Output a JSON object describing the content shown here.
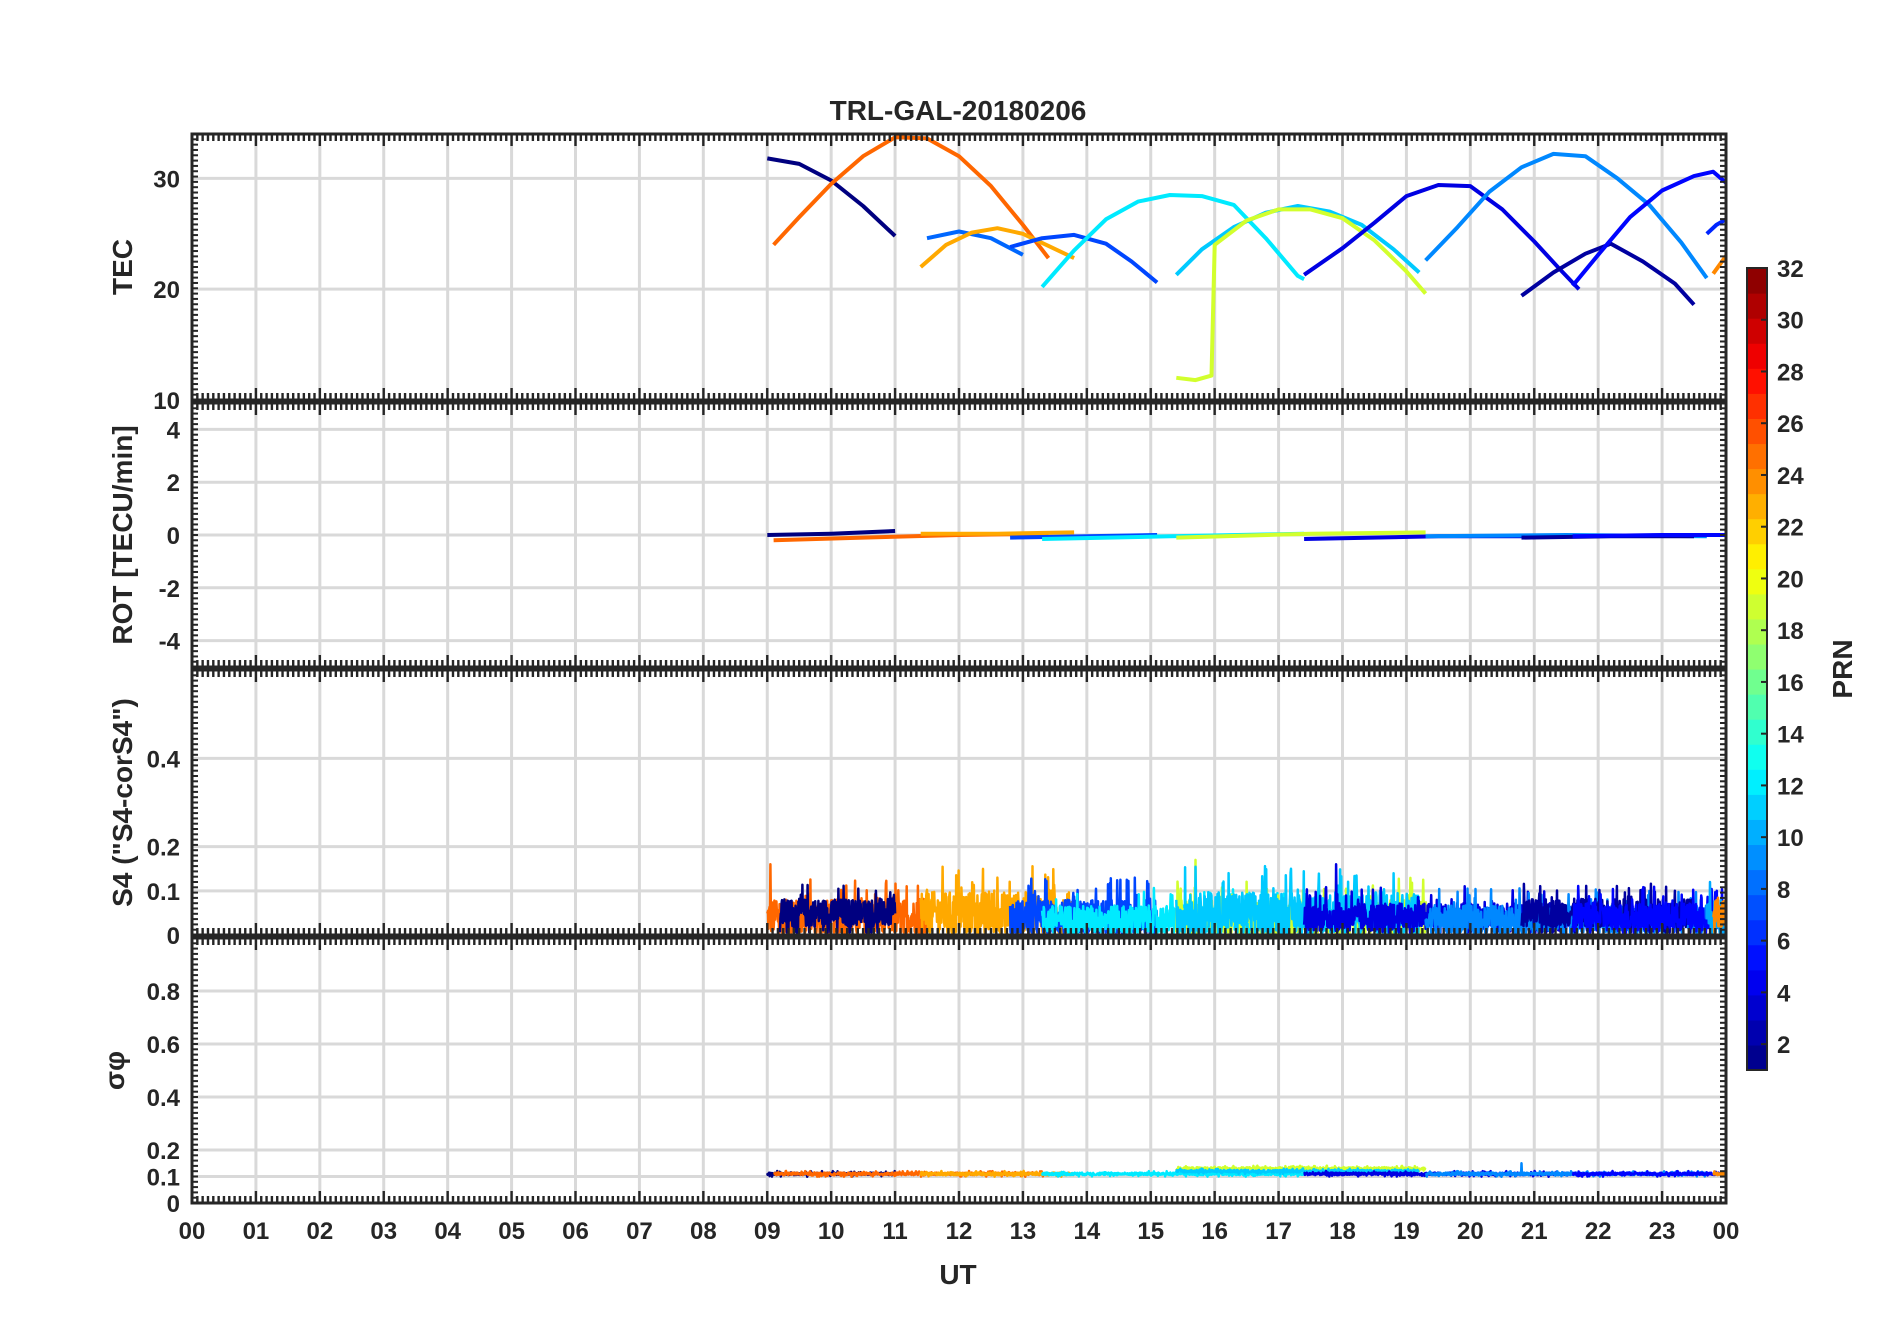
{
  "chart_data": {
    "title": "TRL-GAL-20180206",
    "type": "line",
    "xlabel": "UT",
    "x_ticks": [
      "00",
      "01",
      "02",
      "03",
      "04",
      "05",
      "06",
      "07",
      "08",
      "09",
      "10",
      "11",
      "12",
      "13",
      "14",
      "15",
      "16",
      "17",
      "18",
      "19",
      "20",
      "21",
      "22",
      "23",
      "00"
    ],
    "xlim": [
      0,
      24
    ],
    "colorbar": {
      "label": "PRN",
      "range": [
        1,
        32
      ],
      "ticks": [
        "2",
        "4",
        "6",
        "8",
        "10",
        "12",
        "14",
        "16",
        "18",
        "20",
        "22",
        "24",
        "26",
        "28",
        "30",
        "32"
      ],
      "colormap": "jet"
    },
    "panels": [
      {
        "id": "tec",
        "ylabel": "TEC",
        "ylim": [
          10,
          34
        ],
        "yticks": [
          "10",
          "20",
          "30"
        ],
        "series": [
          {
            "prn": 1,
            "x": [
              9.0,
              9.5,
              10.0,
              10.5,
              11.0
            ],
            "y": [
              31.8,
              31.3,
              29.8,
              27.5,
              24.8
            ]
          },
          {
            "prn": 25,
            "x": [
              9.1,
              9.5,
              10.0,
              10.5,
              11.0,
              11.5,
              12.0,
              12.5,
              13.0,
              13.4
            ],
            "y": [
              24.0,
              26.5,
              29.5,
              32.0,
              33.7,
              33.6,
              32.0,
              29.3,
              25.8,
              22.8
            ]
          },
          {
            "prn": 8,
            "x": [
              11.5,
              12.0,
              12.5,
              13.0
            ],
            "y": [
              24.6,
              25.2,
              24.6,
              23.1
            ]
          },
          {
            "prn": 23,
            "x": [
              11.4,
              11.8,
              12.2,
              12.6,
              13.0,
              13.4,
              13.8
            ],
            "y": [
              22.0,
              24.0,
              25.1,
              25.5,
              25.0,
              23.9,
              22.8
            ]
          },
          {
            "prn": 7,
            "x": [
              12.8,
              13.3,
              13.8,
              14.3,
              14.7,
              15.1
            ],
            "y": [
              23.8,
              24.6,
              24.9,
              24.1,
              22.5,
              20.6
            ]
          },
          {
            "prn": 12,
            "x": [
              13.3,
              13.8,
              14.3,
              14.8,
              15.3,
              15.8,
              16.3,
              16.8,
              17.3,
              17.4
            ],
            "y": [
              20.2,
              23.5,
              26.3,
              27.9,
              28.5,
              28.4,
              27.6,
              24.6,
              21.2,
              20.9
            ]
          },
          {
            "prn": 11,
            "x": [
              15.4,
              15.8,
              16.3,
              16.8,
              17.3,
              17.8,
              18.3,
              18.8,
              19.2
            ],
            "y": [
              21.3,
              23.6,
              25.6,
              26.9,
              27.5,
              27.0,
              25.8,
              23.6,
              21.5
            ]
          },
          {
            "prn": 19,
            "x": [
              15.4,
              15.7,
              15.95,
              16.0,
              16.5,
              17.0,
              17.5,
              18.0,
              18.5,
              19.0,
              19.3
            ],
            "y": [
              12.0,
              11.8,
              12.2,
              24.0,
              26.2,
              27.2,
              27.2,
              26.4,
              24.4,
              21.6,
              19.6
            ]
          },
          {
            "prn": 4,
            "x": [
              17.4,
              18.0,
              18.5,
              19.0,
              19.5,
              20.0,
              20.5,
              21.0,
              21.4,
              21.7
            ],
            "y": [
              21.3,
              23.7,
              26.0,
              28.4,
              29.4,
              29.3,
              27.2,
              24.3,
              21.8,
              20.0
            ]
          },
          {
            "prn": 9,
            "x": [
              19.3,
              19.8,
              20.3,
              20.8,
              21.3,
              21.8,
              22.3,
              22.8,
              23.3,
              23.7
            ],
            "y": [
              22.6,
              25.6,
              28.8,
              31.0,
              32.2,
              32.0,
              30.0,
              27.6,
              24.2,
              21.0
            ]
          },
          {
            "prn": 2,
            "x": [
              20.8,
              21.3,
              21.8,
              22.2,
              22.7,
              23.2,
              23.5
            ],
            "y": [
              19.4,
              21.5,
              23.2,
              24.1,
              22.5,
              20.5,
              18.6
            ]
          },
          {
            "prn": 5,
            "x": [
              21.6,
              22.0,
              22.5,
              23.0,
              23.5,
              23.8,
              24.0
            ],
            "y": [
              20.3,
              23.1,
              26.5,
              28.9,
              30.2,
              30.6,
              29.6
            ]
          },
          {
            "prn": 6,
            "x": [
              23.7,
              23.85,
              24.0
            ],
            "y": [
              25.0,
              25.8,
              26.3
            ]
          },
          {
            "prn": 24,
            "x": [
              23.8,
              24.0
            ],
            "y": [
              21.4,
              23.0
            ]
          }
        ]
      },
      {
        "id": "rot",
        "ylabel": "ROT [TECU/min]",
        "ylim": [
          -5,
          5
        ],
        "yticks": [
          "-4",
          "-2",
          "0",
          "2",
          "4"
        ],
        "series": [
          {
            "prn": 1,
            "x": [
              9.0,
              10.0,
              11.0
            ],
            "y": [
              0.0,
              0.05,
              0.15
            ]
          },
          {
            "prn": 25,
            "x": [
              9.1,
              10.5,
              12.0,
              13.4
            ],
            "y": [
              -0.2,
              -0.1,
              0.0,
              0.05
            ]
          },
          {
            "prn": 23,
            "x": [
              11.4,
              12.6,
              13.8
            ],
            "y": [
              0.05,
              0.05,
              0.1
            ]
          },
          {
            "prn": 7,
            "x": [
              12.8,
              14.0,
              15.1
            ],
            "y": [
              -0.1,
              -0.05,
              0.0
            ]
          },
          {
            "prn": 12,
            "x": [
              13.3,
              15.3,
              17.4
            ],
            "y": [
              -0.15,
              -0.05,
              0.05
            ]
          },
          {
            "prn": 19,
            "x": [
              15.4,
              17.5,
              19.3
            ],
            "y": [
              -0.1,
              0.05,
              0.1
            ]
          },
          {
            "prn": 4,
            "x": [
              17.4,
              19.5,
              21.7
            ],
            "y": [
              -0.15,
              -0.05,
              -0.05
            ]
          },
          {
            "prn": 9,
            "x": [
              19.3,
              21.5,
              23.7
            ],
            "y": [
              -0.05,
              0.0,
              -0.05
            ]
          },
          {
            "prn": 2,
            "x": [
              20.8,
              22.2,
              23.5
            ],
            "y": [
              -0.1,
              -0.05,
              -0.05
            ]
          },
          {
            "prn": 5,
            "x": [
              21.6,
              23.0,
              24.0
            ],
            "y": [
              -0.05,
              0.0,
              0.0
            ]
          }
        ]
      },
      {
        "id": "s4",
        "ylabel": "S4 (\"S4-corS4\")",
        "ylim": [
          0,
          0.6
        ],
        "yticks": [
          "0",
          "0.1",
          "0.2",
          "0.4"
        ],
        "segments": [
          {
            "prn": 25,
            "start": 9.0,
            "end": 11.5,
            "base": 0.04,
            "noise": 0.05,
            "spike_x": 9.05,
            "spike_y": 0.16
          },
          {
            "prn": 1,
            "start": 9.2,
            "end": 11.0,
            "base": 0.05,
            "noise": 0.04
          },
          {
            "prn": 23,
            "start": 11.4,
            "end": 13.8,
            "base": 0.05,
            "noise": 0.06,
            "spike_x": 12.6,
            "spike_y": 0.13
          },
          {
            "prn": 7,
            "start": 12.8,
            "end": 15.1,
            "base": 0.04,
            "noise": 0.05
          },
          {
            "prn": 12,
            "start": 13.3,
            "end": 17.4,
            "base": 0.035,
            "noise": 0.04
          },
          {
            "prn": 19,
            "start": 15.4,
            "end": 19.3,
            "base": 0.04,
            "noise": 0.05,
            "spike_x": 15.7,
            "spike_y": 0.17
          },
          {
            "prn": 11,
            "start": 15.4,
            "end": 19.2,
            "base": 0.05,
            "noise": 0.06,
            "spike_x": 18.8,
            "spike_y": 0.14
          },
          {
            "prn": 4,
            "start": 17.4,
            "end": 21.7,
            "base": 0.04,
            "noise": 0.04,
            "spike_x": 17.9,
            "spike_y": 0.16
          },
          {
            "prn": 9,
            "start": 19.3,
            "end": 23.7,
            "base": 0.035,
            "noise": 0.04
          },
          {
            "prn": 2,
            "start": 20.8,
            "end": 23.5,
            "base": 0.05,
            "noise": 0.04,
            "spike_x": 23.2,
            "spike_y": 0.1
          },
          {
            "prn": 5,
            "start": 21.6,
            "end": 24.0,
            "base": 0.04,
            "noise": 0.04
          },
          {
            "prn": 10,
            "start": 23.7,
            "end": 24.0,
            "base": 0.04,
            "noise": 0.05,
            "spike_x": 23.75,
            "spike_y": 0.12
          },
          {
            "prn": 24,
            "start": 23.8,
            "end": 24.0,
            "base": 0.05,
            "noise": 0.04
          }
        ]
      },
      {
        "id": "sigma_phi",
        "ylabel": "σφ",
        "ylim": [
          0,
          1
        ],
        "yticks": [
          "0",
          "0.1",
          "0.2",
          "0.4",
          "0.6",
          "0.8"
        ],
        "segments": [
          {
            "prn": 1,
            "start": 9.0,
            "end": 11.0,
            "base": 0.11,
            "noise": 0.006
          },
          {
            "prn": 25,
            "start": 9.1,
            "end": 13.4,
            "base": 0.11,
            "noise": 0.006
          },
          {
            "prn": 23,
            "start": 11.4,
            "end": 13.8,
            "base": 0.11,
            "noise": 0.006
          },
          {
            "prn": 12,
            "start": 13.3,
            "end": 17.4,
            "base": 0.11,
            "noise": 0.006
          },
          {
            "prn": 19,
            "start": 15.4,
            "end": 19.3,
            "base": 0.13,
            "noise": 0.006
          },
          {
            "prn": 11,
            "start": 15.4,
            "end": 19.2,
            "base": 0.12,
            "noise": 0.006
          },
          {
            "prn": 4,
            "start": 17.4,
            "end": 21.7,
            "base": 0.11,
            "noise": 0.006
          },
          {
            "prn": 9,
            "start": 19.3,
            "end": 23.7,
            "base": 0.11,
            "noise": 0.006,
            "spike_x": 20.8,
            "spike_y": 0.15
          },
          {
            "prn": 5,
            "start": 21.6,
            "end": 24.0,
            "base": 0.11,
            "noise": 0.006
          },
          {
            "prn": 24,
            "start": 23.8,
            "end": 24.0,
            "base": 0.11,
            "noise": 0.006
          }
        ]
      }
    ]
  }
}
